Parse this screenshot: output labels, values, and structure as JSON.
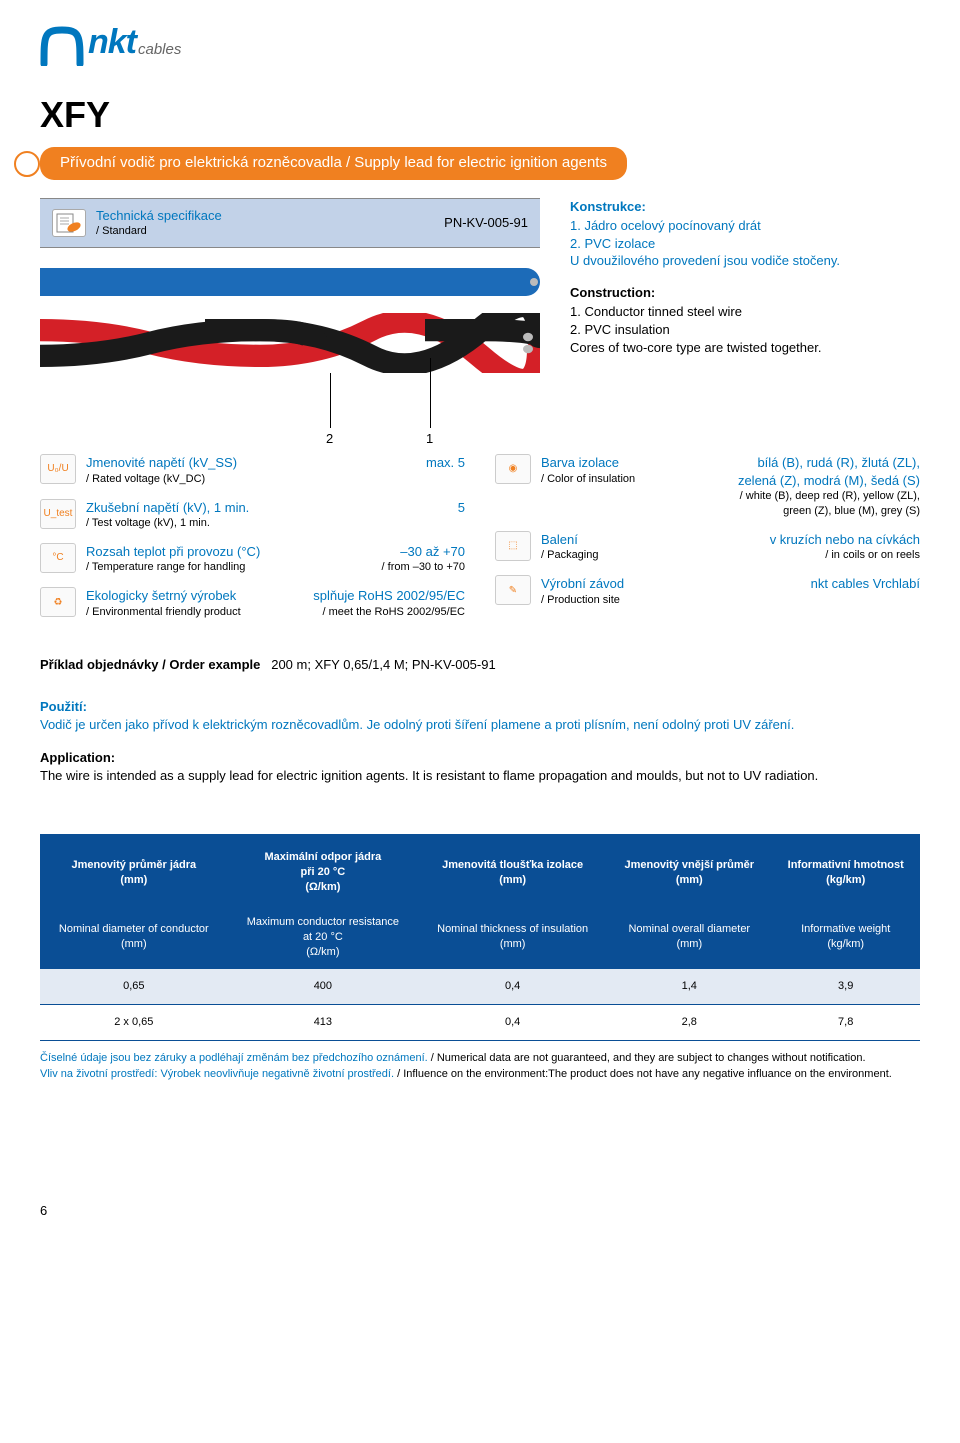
{
  "logo": {
    "brand": "nkt",
    "sub": "cables",
    "brand_color": "#0077be"
  },
  "title": "XFY",
  "subtitle": "Přívodní vodič pro elektrická rozněcovadla / Supply lead for electric ignition agents",
  "subtitle_bg": "#f08020",
  "spec": {
    "label_cz": "Technická specifikace",
    "label_en": "/ Standard",
    "code": "PN-KV-005-91"
  },
  "construction": {
    "title_cz": "Konstrukce:",
    "items_cz": [
      "1. Jádro ocelový pocínovaný drát",
      "2. PVC izolace",
      "U dvoužilového provedení jsou vodiče stočeny."
    ],
    "title_en": "Construction:",
    "items_en": [
      "1. Conductor tinned steel wire",
      "2. PVC insulation",
      "Cores of two-core type are twisted together."
    ]
  },
  "callouts": {
    "c2": "2",
    "c1": "1"
  },
  "cable_colors": {
    "blue": "#1c6bb8",
    "red": "#d42027",
    "black": "#1a1a1a",
    "core": "#bbbbbb"
  },
  "props_left": [
    {
      "icon": "U₀/U",
      "label_cz": "Jmenovité napětí (kV_SS)",
      "label_en": "/ Rated voltage (kV_DC)",
      "val_cz": "max. 5",
      "val_en": ""
    },
    {
      "icon": "U_test",
      "label_cz": "Zkušební napětí (kV), 1 min.",
      "label_en": "/ Test voltage (kV), 1 min.",
      "val_cz": "5",
      "val_en": ""
    },
    {
      "icon": "°C",
      "label_cz": "Rozsah teplot při provozu (°C)",
      "label_en": "/ Temperature range for handling",
      "val_cz": "–30 až +70",
      "val_en": "/ from –30 to +70"
    },
    {
      "icon": "♻",
      "label_cz": "Ekologicky šetrný výrobek",
      "label_en": "/ Environmental friendly product",
      "val_cz": "splňuje RoHS 2002/95/EC",
      "val_en": "/ meet the RoHS 2002/95/EC"
    }
  ],
  "props_right": [
    {
      "icon": "◉",
      "label_cz": "Barva izolace",
      "label_en": "/ Color of insulation",
      "val_cz": "bílá (B), rudá (R), žlutá (ZL), zelená (Z), modrá (M), šedá (S)",
      "val_en": "/ white (B), deep red (R), yellow (ZL), green (Z), blue (M), grey (S)"
    },
    {
      "icon": "⬚",
      "label_cz": "Balení",
      "label_en": "/ Packaging",
      "val_cz": "v kruzích nebo na cívkách",
      "val_en": "/ in coils or on reels"
    },
    {
      "icon": "✎",
      "label_cz": "Výrobní závod",
      "label_en": "/ Production site",
      "val_cz": "nkt cables Vrchlabí",
      "val_en": ""
    }
  ],
  "order": {
    "label": "Příklad objednávky / Order example",
    "value": "200 m; XFY 0,65/1,4 M; PN-KV-005-91"
  },
  "usage": {
    "title_cz": "Použití:",
    "text_cz": "Vodič je určen jako přívod k elektrickým rozněcovadlům. Je odolný proti šíření plamene a proti plísním, není odolný proti UV záření.",
    "title_en": "Application:",
    "text_en": "The wire is intended as a supply lead for electric ignition agents. It is resistant to flame propagation and moulds, but not to UV radiation."
  },
  "table": {
    "header_bg": "#0a4e95",
    "columns_cz": [
      "Jmenovitý průměr jádra (mm)",
      "Maximální odpor jádra při 20 °C (Ω/km)",
      "Jmenovitá tloušťka izolace (mm)",
      "Jmenovitý vnější průměr (mm)",
      "Informativní hmotnost (kg/km)"
    ],
    "columns_en": [
      "Nominal diameter of conductor (mm)",
      "Maximum conductor resistance at 20 °C (Ω/km)",
      "Nominal thickness of insulation (mm)",
      "Nominal overall diameter (mm)",
      "Informative weight (kg/km)"
    ],
    "rows": [
      [
        "0,65",
        "400",
        "0,4",
        "1,4",
        "3,9"
      ],
      [
        "2 x 0,65",
        "413",
        "0,4",
        "2,8",
        "7,8"
      ]
    ]
  },
  "disclaimer": {
    "line1_cz": "Číselné údaje jsou bez záruky a podléhají změnám bez předchozího oznámení.",
    "line1_en": " / Numerical data are not guaranteed, and they are subject to changes without notification.",
    "line2_cz": "Vliv na životní prostředí: Výrobek neovlivňuje negativně životní prostředí.",
    "line2_en": " / Influence on the environment:The product does not have any negative influance on the environment."
  },
  "page_number": "6"
}
